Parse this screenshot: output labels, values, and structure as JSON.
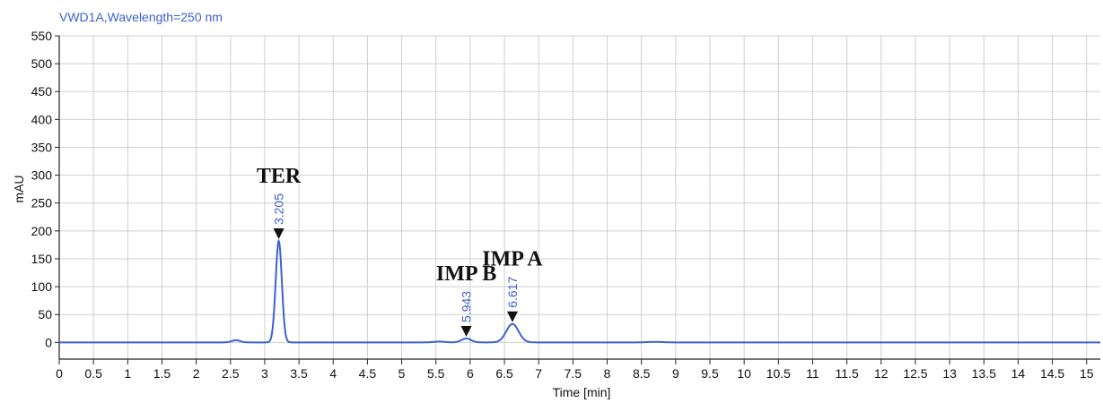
{
  "chart_data": {
    "type": "line",
    "title": "VWD1A,Wavelength=250 nm",
    "xlabel": "Time [min]",
    "ylabel": "mAU",
    "xlim": [
      0,
      15.2
    ],
    "ylim": [
      -30,
      550
    ],
    "xticks": [
      0,
      0.5,
      1,
      1.5,
      2,
      2.5,
      3,
      3.5,
      4,
      4.5,
      5,
      5.5,
      6,
      6.5,
      7,
      7.5,
      8,
      8.5,
      9,
      9.5,
      10,
      10.5,
      11,
      11.5,
      12,
      12.5,
      13,
      13.5,
      14,
      14.5,
      15
    ],
    "xtick_labels": [
      "0",
      "0.5",
      "1",
      "1.5",
      "2",
      "2.5",
      "3",
      "3.5",
      "4",
      "4.5",
      "5",
      "5.5",
      "6",
      "6.5",
      "7",
      "7.5",
      "8",
      "8.5",
      "9",
      "9.5",
      "10",
      "10.5",
      "11",
      "11.5",
      "12",
      "12.5",
      "13",
      "13.5",
      "14",
      "14.5",
      "15"
    ],
    "yticks": [
      0,
      50,
      100,
      150,
      200,
      250,
      300,
      350,
      400,
      450,
      500,
      550
    ],
    "ytick_labels": [
      "0",
      "50",
      "100",
      "150",
      "200",
      "250",
      "300",
      "350",
      "400",
      "450",
      "500",
      "550"
    ],
    "grid": true,
    "line_color": "#3b62cf",
    "baseline": 0,
    "peaks": [
      {
        "rt": 2.58,
        "height": 4,
        "width": 0.06
      },
      {
        "rt": 3.205,
        "height": 182,
        "width": 0.045,
        "rt_label": "3.205",
        "name": "TER"
      },
      {
        "rt": 5.55,
        "height": 1.5,
        "width": 0.08
      },
      {
        "rt": 5.943,
        "height": 7,
        "width": 0.07,
        "rt_label": "5.943",
        "name": "IMP B"
      },
      {
        "rt": 6.617,
        "height": 33,
        "width": 0.09,
        "rt_label": "6.617",
        "name": "IMP A"
      },
      {
        "rt": 8.7,
        "height": 1,
        "width": 0.1
      }
    ]
  }
}
